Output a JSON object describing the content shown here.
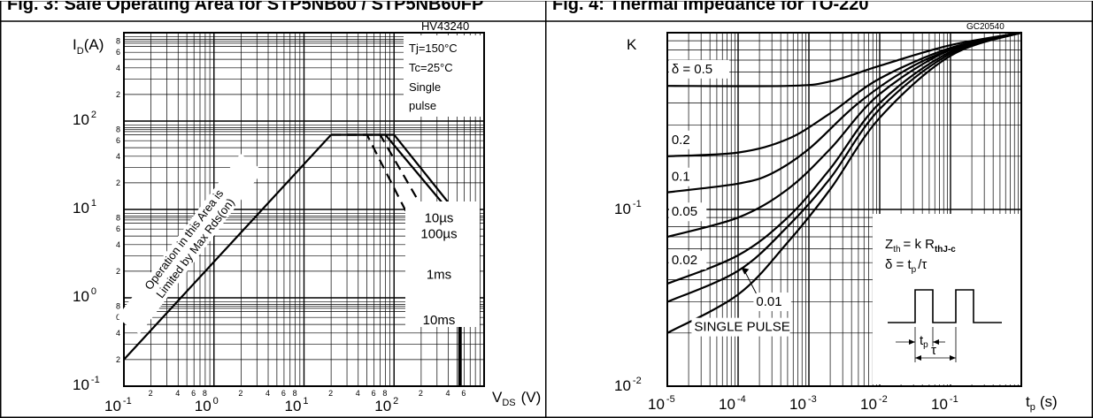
{
  "captions": {
    "left": "Fig. 3: Safe Operating Area for STP5NB60 / STP5NB60FP",
    "right": "Fig. 4: Thermal Impedance for TO-220"
  },
  "chart_data": [
    {
      "type": "line",
      "code": "HV43240",
      "ylabel": "I",
      "ylabel_sub": "D",
      "ylabel_unit": "(A)",
      "xlabel": "V",
      "xlabel_sub": "DS",
      "xlabel_unit": "(V)",
      "x_scale": "log",
      "y_scale": "log",
      "xlim": [
        0.1,
        1000
      ],
      "ylim": [
        0.1,
        1000
      ],
      "x_ticks": [
        {
          "base": "10",
          "exp": "-1",
          "value": 0.1
        },
        {
          "base": "10",
          "exp": "0",
          "value": 1
        },
        {
          "base": "10",
          "exp": "1",
          "value": 10
        },
        {
          "base": "10",
          "exp": "2",
          "value": 100
        }
      ],
      "y_ticks": [
        {
          "base": "10",
          "exp": "-1",
          "value": 0.1
        },
        {
          "base": "10",
          "exp": "0",
          "value": 1
        },
        {
          "base": "10",
          "exp": "1",
          "value": 10
        },
        {
          "base": "10",
          "exp": "2",
          "value": 100
        }
      ],
      "minor_tick_labels": [
        "2",
        "4",
        "6",
        "8"
      ],
      "conditions": [
        "Tj=150°C",
        "Tc=25°C",
        "Single",
        "pulse"
      ],
      "region_annotation": [
        "Operation in this Area is",
        "Limited by Max Rds(on)"
      ],
      "series": [
        {
          "name": "10ms",
          "style": "dashed",
          "points": [
            [
              20,
              70
            ],
            [
              50,
              70
            ],
            [
              500,
              0.7
            ]
          ]
        },
        {
          "name": "1ms",
          "style": "dashed",
          "points": [
            [
              30,
              70
            ],
            [
              70,
              70
            ],
            [
              500,
              2.2
            ]
          ]
        },
        {
          "name": "100µs",
          "style": "solid",
          "points": [
            [
              20,
              70
            ],
            [
              80,
              70
            ],
            [
              530,
              7
            ],
            [
              530,
              0.1
            ]
          ]
        },
        {
          "name": "10µs",
          "style": "solid",
          "points": [
            [
              30,
              70
            ],
            [
              100,
              70
            ],
            [
              550,
              8
            ],
            [
              550,
              0.1
            ]
          ]
        },
        {
          "name": "Rds(on) limit",
          "style": "solid",
          "points": [
            [
              0.1,
              0.2
            ],
            [
              20,
              70
            ]
          ]
        }
      ],
      "series_labels": [
        {
          "text": "10µs",
          "y": 8
        },
        {
          "text": "100µs",
          "y": 5.3
        },
        {
          "text": "1ms",
          "y": 1.85
        },
        {
          "text": "10ms",
          "y": 0.56
        }
      ]
    },
    {
      "type": "line",
      "code": "GC20540",
      "ylabel": "K",
      "xlabel": "t",
      "xlabel_sub": "p",
      "xlabel_unit": "(s)",
      "x_scale": "log",
      "y_scale": "log",
      "xlim": [
        1e-05,
        1
      ],
      "ylim": [
        0.01,
        1
      ],
      "x_ticks": [
        {
          "base": "10",
          "exp": "-5",
          "value": 1e-05
        },
        {
          "base": "10",
          "exp": "-4",
          "value": 0.0001
        },
        {
          "base": "10",
          "exp": "-3",
          "value": 0.001
        },
        {
          "base": "10",
          "exp": "-2",
          "value": 0.01
        },
        {
          "base": "10",
          "exp": "-1",
          "value": 0.1
        }
      ],
      "y_ticks": [
        {
          "base": "10",
          "exp": "-2",
          "value": 0.01
        },
        {
          "base": "10",
          "exp": "-1",
          "value": 0.1
        }
      ],
      "formula_lines": [
        "Z_th = k R_thJ-c",
        "δ = t_p / τ"
      ],
      "formula_parts": {
        "z": "Z",
        "z_sub": "th",
        "eq_k_r": "= k R",
        "r_sub": "thJ-c",
        "delta_eq": "δ = t",
        "tp_sub": "p",
        "over_tau": "/τ"
      },
      "waveform_labels": {
        "tp": "t",
        "tp_sub": "p",
        "tau": "τ"
      },
      "series": [
        {
          "name": "δ = 0.5",
          "points": [
            [
              1e-05,
              0.5
            ],
            [
              0.0005,
              0.5
            ],
            [
              0.002,
              0.53
            ],
            [
              0.01,
              0.65
            ],
            [
              0.1,
              0.85
            ],
            [
              1,
              1
            ]
          ]
        },
        {
          "name": "0.2",
          "points": [
            [
              1e-05,
              0.2
            ],
            [
              0.0001,
              0.21
            ],
            [
              0.0005,
              0.25
            ],
            [
              0.002,
              0.35
            ],
            [
              0.01,
              0.55
            ],
            [
              0.1,
              0.82
            ],
            [
              1,
              1
            ]
          ]
        },
        {
          "name": "0.1",
          "points": [
            [
              1e-05,
              0.125
            ],
            [
              0.0001,
              0.14
            ],
            [
              0.0003,
              0.16
            ],
            [
              0.001,
              0.22
            ],
            [
              0.005,
              0.4
            ],
            [
              0.03,
              0.65
            ],
            [
              0.2,
              0.88
            ],
            [
              1,
              1
            ]
          ]
        },
        {
          "name": "0.05",
          "points": [
            [
              1e-05,
              0.07
            ],
            [
              0.0001,
              0.09
            ],
            [
              0.0005,
              0.13
            ],
            [
              0.002,
              0.22
            ],
            [
              0.01,
              0.45
            ],
            [
              0.1,
              0.8
            ],
            [
              1,
              1
            ]
          ]
        },
        {
          "name": "0.02",
          "points": [
            [
              1e-05,
              0.038
            ],
            [
              0.0001,
              0.055
            ],
            [
              0.0005,
              0.09
            ],
            [
              0.002,
              0.17
            ],
            [
              0.01,
              0.4
            ],
            [
              0.1,
              0.78
            ],
            [
              1,
              1
            ]
          ]
        },
        {
          "name": "0.01",
          "points": [
            [
              1e-05,
              0.03
            ],
            [
              0.0001,
              0.045
            ],
            [
              0.0005,
              0.08
            ],
            [
              0.002,
              0.15
            ],
            [
              0.01,
              0.37
            ],
            [
              0.1,
              0.76
            ],
            [
              1,
              1
            ]
          ]
        },
        {
          "name": "SINGLE PULSE",
          "points": [
            [
              1e-05,
              0.02
            ],
            [
              0.0001,
              0.033
            ],
            [
              0.0005,
              0.065
            ],
            [
              0.002,
              0.13
            ],
            [
              0.01,
              0.33
            ],
            [
              0.1,
              0.74
            ],
            [
              1,
              1
            ]
          ]
        }
      ],
      "series_labels": [
        {
          "text": "δ = 0.5",
          "t": 1.15e-05,
          "k": 0.59
        },
        {
          "text": "0.2",
          "t": 1.15e-05,
          "k": 0.235
        },
        {
          "text": "0.1",
          "t": 1.15e-05,
          "k": 0.145
        },
        {
          "text": "0.05",
          "t": 1.15e-05,
          "k": 0.092
        },
        {
          "text": "0.02",
          "t": 1.15e-05,
          "k": 0.049
        },
        {
          "text": "0.01",
          "t": 0.00018,
          "k": 0.0285
        },
        {
          "text": "SINGLE PULSE",
          "t": 2.4e-05,
          "k": 0.0205
        }
      ]
    }
  ]
}
